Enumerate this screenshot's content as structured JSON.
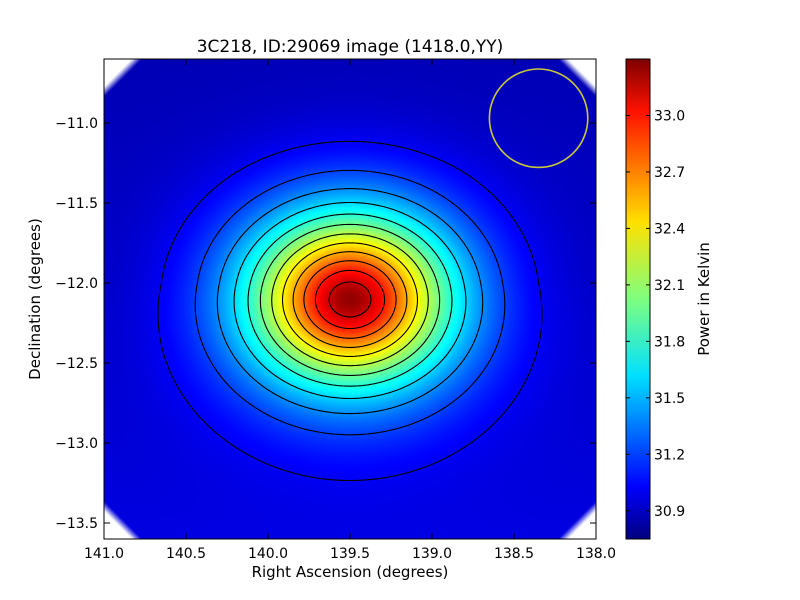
{
  "chart_data": {
    "type": "heatmap",
    "title": "3C218, ID:29069 image (1418.0,YY)",
    "xlabel": "Right Ascension (degrees)",
    "ylabel": "Declination (degrees)",
    "xlim": [
      141.0,
      138.0
    ],
    "ylim": [
      -13.6,
      -10.6
    ],
    "x_ticks": [
      "141.0",
      "140.5",
      "140.0",
      "139.5",
      "139.0",
      "138.5",
      "138.0"
    ],
    "x_tick_values": [
      141.0,
      140.5,
      140.0,
      139.5,
      139.0,
      138.5,
      138.0
    ],
    "y_ticks": [
      "−11.0",
      "−11.5",
      "−12.0",
      "−12.5",
      "−13.0",
      "−13.5"
    ],
    "y_tick_values": [
      -11.0,
      -11.5,
      -12.0,
      -12.5,
      -13.0,
      -13.5
    ],
    "colorbar": {
      "label": "Power in Kelvin",
      "range": [
        30.75,
        33.3
      ],
      "ticks": [
        "30.9",
        "31.2",
        "31.5",
        "31.8",
        "32.1",
        "32.4",
        "32.7",
        "33.0"
      ],
      "tick_values": [
        30.9,
        31.2,
        31.5,
        31.8,
        32.1,
        32.4,
        32.7,
        33.0
      ],
      "colormap": "jet"
    },
    "source_peak": {
      "ra": 139.5,
      "dec": -12.1,
      "value": 33.25
    },
    "background_level": 30.9,
    "contour_levels": 12,
    "beam_circle": {
      "ra": 138.35,
      "dec": -10.97,
      "radius_deg": 0.3,
      "color": "#c8c83c"
    },
    "grid": false
  }
}
